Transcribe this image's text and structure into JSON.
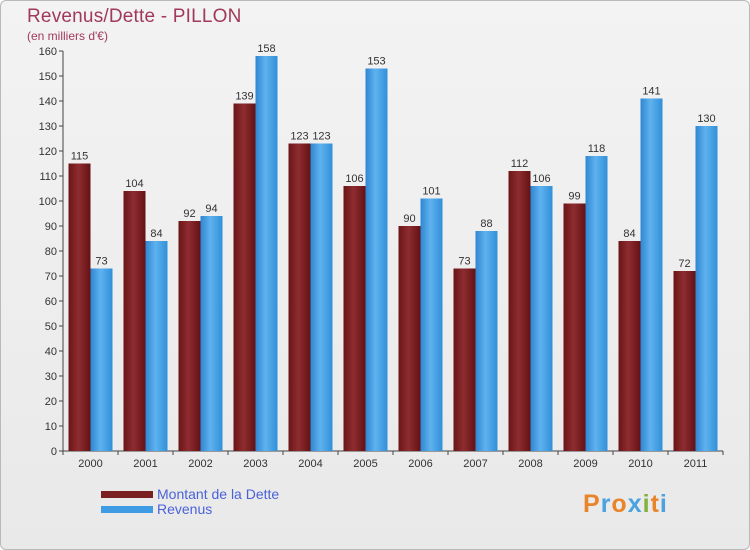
{
  "colors": {
    "dette": "#7a1f22",
    "revenus": "#3e9be4",
    "title": "#a0395a",
    "legend_text": "#4a62d8"
  },
  "logo": {
    "text": "Proxiti",
    "letter_colors": [
      "#e8852a",
      "#4aa3de",
      "#e8852a",
      "#4aa3de",
      "#7fb33c",
      "#e8852a",
      "#4aa3de"
    ]
  },
  "chart_data": {
    "type": "bar",
    "title": "Revenus/Dette - PILLON",
    "subtitle": "(en milliers d'€)",
    "categories": [
      "2000",
      "2001",
      "2002",
      "2003",
      "2004",
      "2005",
      "2006",
      "2007",
      "2008",
      "2009",
      "2010",
      "2011"
    ],
    "series": [
      {
        "name": "Montant de la Dette",
        "values": [
          115,
          104,
          92,
          139,
          123,
          106,
          90,
          73,
          112,
          99,
          84,
          72
        ]
      },
      {
        "name": "Revenus",
        "values": [
          73,
          84,
          94,
          158,
          123,
          153,
          101,
          88,
          106,
          118,
          141,
          130
        ]
      }
    ],
    "ylim": [
      0,
      160
    ],
    "yticks": [
      0,
      10,
      20,
      30,
      40,
      50,
      60,
      70,
      80,
      90,
      100,
      110,
      120,
      130,
      140,
      150,
      160
    ],
    "xlabel": "",
    "ylabel": "",
    "grid": false,
    "legend_position": "bottom-left"
  }
}
